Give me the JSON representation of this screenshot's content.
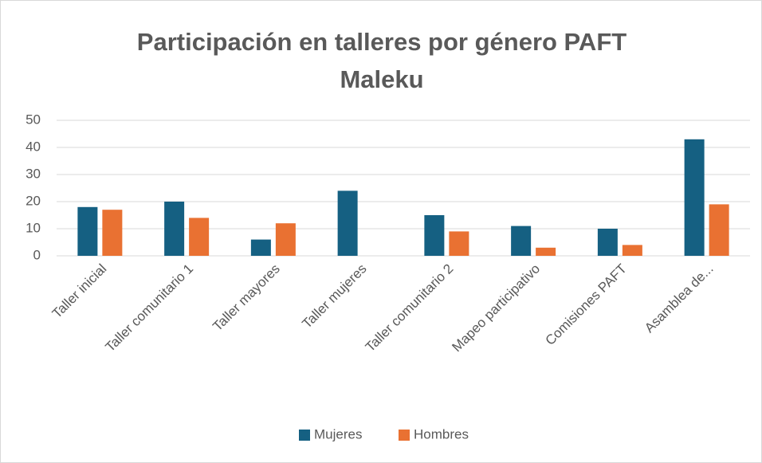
{
  "chart_data": {
    "type": "bar",
    "title": "Participación en talleres por género PAFT Maleku",
    "categories": [
      "Taller inicial",
      "Taller comunitario 1",
      "Taller mayores",
      "Taller  mujeres",
      "Taller comunitario 2",
      "Mapeo participativo",
      "Comisiones PAFT",
      "Asamblea de..."
    ],
    "series": [
      {
        "name": "Mujeres",
        "color": "#156082",
        "values": [
          18,
          20,
          6,
          24,
          15,
          11,
          10,
          43
        ]
      },
      {
        "name": "Hombres",
        "color": "#e97132",
        "values": [
          17,
          14,
          12,
          0,
          9,
          3,
          4,
          19
        ]
      }
    ],
    "ylim": [
      0,
      50
    ],
    "yticks": [
      0,
      10,
      20,
      30,
      40,
      50
    ],
    "grid": true,
    "legend": "bottom"
  }
}
